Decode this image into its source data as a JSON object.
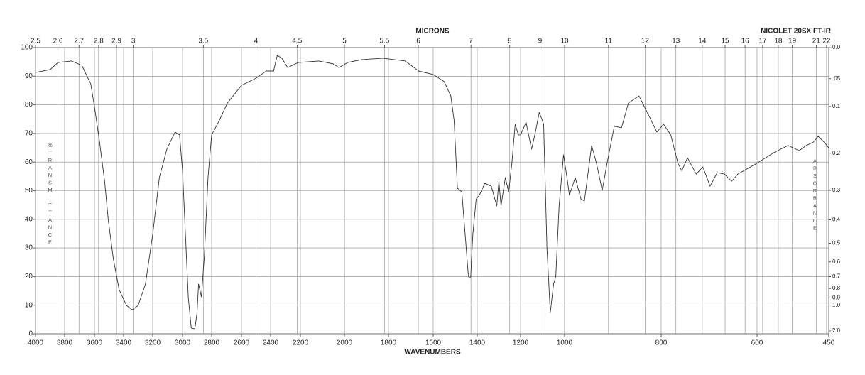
{
  "chart_data": {
    "type": "line",
    "title": "MICRONS",
    "subtitle": "NICOLET 20SX FT-IR",
    "x_label": "WAVENUMBERS",
    "y_label": "%TRANSMITTANCE",
    "y2_label": "ABSORBANCE",
    "color": "#333333",
    "grid": true,
    "xlim": [
      4000,
      450
    ],
    "xticks": [
      4000,
      3800,
      3600,
      3400,
      3200,
      3000,
      2800,
      2600,
      2400,
      2200,
      2000,
      1800,
      1600,
      1400,
      1200,
      1000,
      800,
      600,
      450
    ],
    "x2ticks": [
      2.5,
      2.6,
      2.7,
      2.8,
      2.9,
      3,
      3.5,
      4,
      4.5,
      5,
      5.5,
      6,
      7,
      8,
      9,
      10,
      11,
      12,
      13,
      14,
      15,
      16,
      17,
      18,
      19,
      21,
      22
    ],
    "ylim": [
      0,
      100
    ],
    "yticks": [
      0,
      10,
      20,
      30,
      40,
      50,
      60,
      70,
      80,
      90,
      100
    ],
    "y2ticks": [
      {
        "value": 0,
        "label": "0.0"
      },
      {
        "value": 0.05,
        "label": ".05"
      },
      0.1,
      0.2,
      0.3,
      0.4,
      0.5,
      0.6,
      0.7,
      0.8,
      0.9,
      {
        "value": 1,
        "label": "1.0"
      },
      {
        "value": 2,
        "label": "2.0"
      }
    ],
    "x": [
      4000,
      3900,
      3845,
      3755,
      3685,
      3625,
      3600,
      3565,
      3530,
      3505,
      3470,
      3430,
      3380,
      3340,
      3300,
      3250,
      3200,
      3155,
      3105,
      3050,
      3020,
      3000,
      2980,
      2960,
      2940,
      2915,
      2900,
      2890,
      2870,
      2850,
      2825,
      2800,
      2750,
      2695,
      2600,
      2500,
      2430,
      2380,
      2355,
      2325,
      2285,
      2215,
      2115,
      2050,
      2025,
      1985,
      1920,
      1825,
      1725,
      1665,
      1600,
      1550,
      1520,
      1505,
      1490,
      1470,
      1455,
      1440,
      1430,
      1420,
      1405,
      1390,
      1365,
      1335,
      1310,
      1300,
      1290,
      1270,
      1255,
      1240,
      1225,
      1210,
      1200,
      1175,
      1150,
      1135,
      1115,
      1095,
      1080,
      1065,
      1050,
      1040,
      1025,
      1005,
      995,
      990,
      978,
      966,
      959,
      944,
      934,
      922,
      912,
      897,
      882,
      868,
      846,
      824,
      809,
      795,
      780,
      765,
      757,
      745,
      727,
      713,
      698,
      683,
      668,
      653,
      640,
      600,
      565,
      535,
      512,
      497,
      482,
      472,
      460,
      450
    ],
    "values": [
      91.3,
      92.3,
      94.8,
      95.3,
      93.8,
      87.3,
      79.4,
      67,
      53.3,
      39.7,
      26,
      15.4,
      9.9,
      8.4,
      9.9,
      17.4,
      34.7,
      54.6,
      64.5,
      70.5,
      69.5,
      57,
      34.7,
      12.4,
      2,
      1.7,
      7.4,
      17.4,
      12.9,
      27.3,
      54.6,
      69.5,
      74.4,
      80.6,
      86.8,
      89.3,
      91.8,
      91.8,
      97.3,
      96.3,
      93,
      94.8,
      95.3,
      94.3,
      93,
      94.8,
      95.8,
      96.3,
      95.3,
      91.8,
      90.6,
      88.1,
      83.1,
      74.4,
      50.9,
      49.6,
      34.7,
      19.9,
      19.4,
      34.7,
      47.1,
      48.4,
      52.6,
      51.6,
      44.7,
      53.3,
      44.7,
      54.6,
      49.6,
      59.6,
      73.2,
      69.5,
      69.5,
      73.9,
      64.5,
      69.5,
      77.4,
      73.2,
      29.8,
      7.4,
      17.4,
      19.9,
      44.7,
      62.5,
      54.6,
      48.4,
      54.6,
      47.1,
      46.4,
      65.8,
      59.6,
      50.1,
      59.6,
      72.5,
      72,
      80.6,
      83.1,
      75.7,
      70.5,
      73.2,
      69.5,
      59.6,
      57,
      61.5,
      55.8,
      58.3,
      51.6,
      56.3,
      55.8,
      53.3,
      55.8,
      59.6,
      63.3,
      65.8,
      64,
      65.8,
      67,
      69,
      67,
      65
    ]
  }
}
